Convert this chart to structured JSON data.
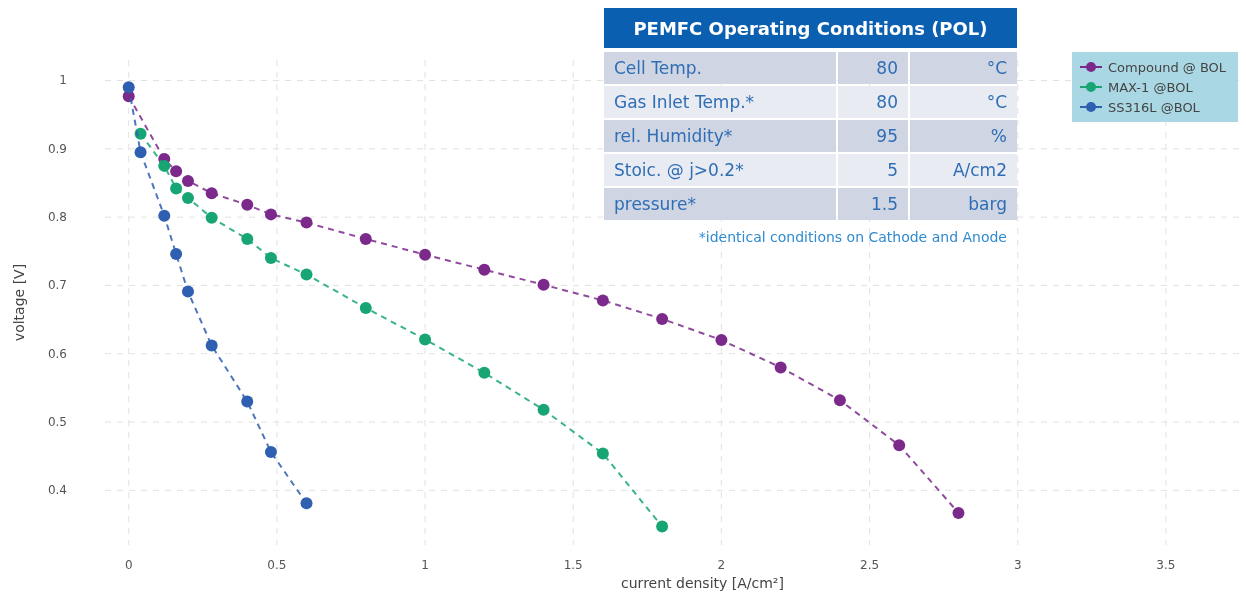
{
  "chart_data": [
    {
      "type": "line",
      "xlabel": "current density [A/cm²]",
      "ylabel": "voltage [V]",
      "xlim": [
        -0.08,
        3.75
      ],
      "ylim": [
        0.32,
        1.03
      ],
      "xticks": [
        0,
        0.5,
        1,
        1.5,
        2,
        2.5,
        3,
        3.5
      ],
      "yticks": [
        0.4,
        0.5,
        0.6,
        0.7,
        0.8,
        0.9,
        1
      ],
      "grid": true,
      "legend": "top right",
      "marker": "circle",
      "line_style": "dashed",
      "series": [
        {
          "name": "Compound @ BOL",
          "color": "#7b2a8c",
          "x": [
            0,
            0.12,
            0.16,
            0.2,
            0.28,
            0.4,
            0.48,
            0.6,
            0.8,
            1.0,
            1.2,
            1.4,
            1.6,
            1.8,
            2.0,
            2.2,
            2.4,
            2.6,
            2.8
          ],
          "values": [
            0.977,
            0.885,
            0.867,
            0.853,
            0.835,
            0.818,
            0.804,
            0.792,
            0.768,
            0.745,
            0.723,
            0.701,
            0.678,
            0.651,
            0.62,
            0.58,
            0.532,
            0.466,
            0.367
          ]
        },
        {
          "name": "MAX-1 @BOL",
          "color": "#17a673",
          "x": [
            0.04,
            0.12,
            0.16,
            0.2,
            0.28,
            0.4,
            0.48,
            0.6,
            0.8,
            1.0,
            1.2,
            1.4,
            1.6,
            1.8
          ],
          "values": [
            0.922,
            0.875,
            0.842,
            0.828,
            0.799,
            0.768,
            0.74,
            0.716,
            0.667,
            0.621,
            0.572,
            0.518,
            0.454,
            0.347
          ]
        },
        {
          "name": "SS316L @BOL",
          "color": "#2e5fb0",
          "x": [
            0,
            0.04,
            0.12,
            0.16,
            0.2,
            0.28,
            0.4,
            0.48,
            0.6
          ],
          "values": [
            0.99,
            0.895,
            0.802,
            0.746,
            0.691,
            0.612,
            0.53,
            0.456,
            0.381
          ]
        }
      ]
    },
    {
      "type": "other",
      "title": "PEMFC Operating Conditions (POL)",
      "annotations": [
        "Cell Temp.",
        "80",
        "°C",
        "Gas Inlet Temp.*",
        "80",
        "°C",
        "rel. Humidity*",
        "95",
        "%",
        "Stoic. @ j>0.2*",
        "5",
        "A/cm2",
        "pressure*",
        "1.5",
        "barg",
        "*identical conditions on Cathode and Anode"
      ]
    }
  ]
}
